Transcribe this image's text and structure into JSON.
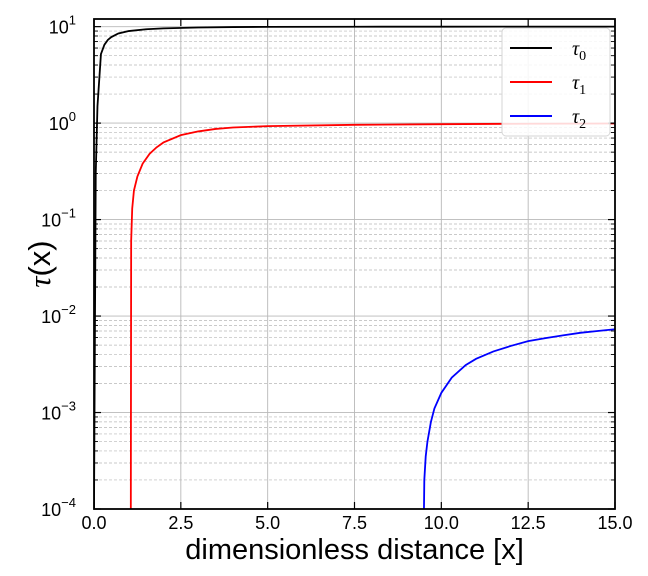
{
  "chart_data": {
    "type": "line",
    "title": "",
    "xlabel": "dimensionless distance [x]",
    "ylabel_symbol": "τ",
    "ylabel_arg": "(x)",
    "xscale": "linear",
    "yscale": "log",
    "xlim": [
      0,
      15
    ],
    "ylim": [
      0.0001,
      12
    ],
    "x_ticks": [
      0,
      2.5,
      5,
      7.5,
      10,
      12.5,
      15
    ],
    "x_tick_labels": [
      "0.0",
      "2.5",
      "5.0",
      "7.5",
      "10.0",
      "12.5",
      "15.0"
    ],
    "y_ticks": [
      {
        "value": 10,
        "base": "10",
        "exp": "1"
      },
      {
        "value": 1,
        "base": "10",
        "exp": "0"
      },
      {
        "value": 0.1,
        "base": "10",
        "exp": "−1"
      },
      {
        "value": 0.01,
        "base": "10",
        "exp": "−2"
      },
      {
        "value": 0.001,
        "base": "10",
        "exp": "−3"
      },
      {
        "value": 0.0001,
        "base": "10",
        "exp": "−4"
      }
    ],
    "grid": "major solid, minor dashed",
    "legend_position": "top-right",
    "series": [
      {
        "name": "τ",
        "subscript": "0",
        "color": "#000000",
        "x": [
          0.0,
          0.05,
          0.1,
          0.2,
          0.3,
          0.4,
          0.5,
          0.7,
          1.0,
          1.5,
          2.0,
          3.0,
          4.0,
          5.0,
          7.5,
          10.0,
          12.5,
          15.0
        ],
        "y": [
          0.0001,
          0.3,
          1.5,
          5.2,
          6.5,
          7.3,
          7.8,
          8.5,
          9.0,
          9.4,
          9.6,
          9.8,
          9.9,
          9.95,
          9.98,
          9.99,
          10.0,
          10.0
        ]
      },
      {
        "name": "τ",
        "subscript": "1",
        "color": "#ff0000",
        "x": [
          1.06,
          1.07,
          1.1,
          1.15,
          1.25,
          1.4,
          1.6,
          1.8,
          2.0,
          2.5,
          3.0,
          3.5,
          4.0,
          5.0,
          7.5,
          10.0,
          12.5,
          15.0
        ],
        "y": [
          0.0001,
          0.06,
          0.13,
          0.2,
          0.28,
          0.38,
          0.48,
          0.56,
          0.63,
          0.75,
          0.82,
          0.87,
          0.9,
          0.93,
          0.96,
          0.975,
          0.985,
          0.99
        ]
      },
      {
        "name": "τ",
        "subscript": "2",
        "color": "#0000ff",
        "x": [
          9.5,
          9.51,
          9.55,
          9.6,
          9.7,
          9.8,
          10.0,
          10.3,
          10.7,
          11.0,
          11.5,
          12.0,
          12.5,
          13.0,
          13.5,
          14.0,
          14.5,
          15.0
        ],
        "y": [
          0.0001,
          0.0002,
          0.00035,
          0.0005,
          0.0008,
          0.0011,
          0.0016,
          0.0023,
          0.0031,
          0.0036,
          0.0043,
          0.0049,
          0.0055,
          0.0059,
          0.0063,
          0.0067,
          0.007,
          0.0073
        ]
      }
    ]
  }
}
